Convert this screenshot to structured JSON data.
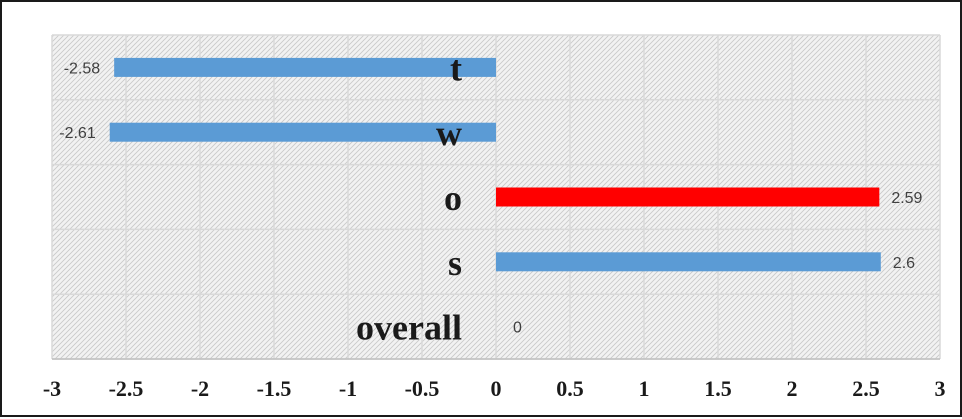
{
  "chart_data": {
    "type": "bar",
    "orientation": "horizontal",
    "categories": [
      "t",
      "w",
      "o",
      "s",
      "overall"
    ],
    "values": [
      -2.58,
      -2.61,
      2.59,
      2.6,
      0
    ],
    "value_labels": [
      "-2.58",
      "-2.61",
      "2.59",
      "2.6",
      "0"
    ],
    "bar_colors": [
      "#5b9bd5",
      "#5b9bd5",
      "#ff0000",
      "#5b9bd5",
      "#5b9bd5"
    ],
    "xlim": [
      -3,
      3
    ],
    "x_ticks": [
      -3,
      -2.5,
      -2,
      -1.5,
      -1,
      -0.5,
      0,
      0.5,
      1,
      1.5,
      2,
      2.5,
      3
    ],
    "x_tick_labels": [
      "-3",
      "-2.5",
      "-2",
      "-1.5",
      "-1",
      "-0.5",
      "0",
      "0.5",
      "1",
      "1.5",
      "2",
      "2.5",
      "3"
    ],
    "grid": true,
    "plot_background": "hatched light gray",
    "title": "",
    "xlabel": "",
    "ylabel": ""
  }
}
